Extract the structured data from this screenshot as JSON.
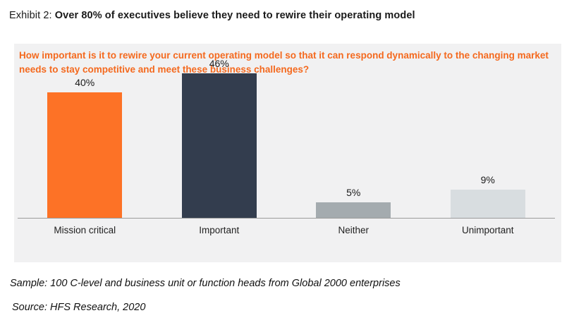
{
  "title": {
    "prefix": "Exhibit 2: ",
    "bold": "Over 80% of executives believe they need to rewire their operating model"
  },
  "question": "How important is it to rewire your current operating model so that it can respond dynamically to the changing market needs to stay competitive and meet these business challenges?",
  "footnotes": {
    "sample": "Sample: 100 C-level and business unit or function heads from Global 2000 enterprises",
    "source": "Source: HFS Research, 2020"
  },
  "colors": {
    "panel_bg": "#f1f1f2",
    "question_text": "#f4691e",
    "axis_line": "#9b9b9b",
    "bar_orange": "#fd7226",
    "bar_navy": "#333d4e",
    "bar_gray": "#a4abaf",
    "bar_light_gray": "#d8dde0"
  },
  "chart_data": {
    "type": "bar",
    "title": "How important is it to rewire your current operating model so that it can respond dynamically to the changing market needs to stay competitive and meet these business challenges?",
    "categories": [
      "Mission critical",
      "Important",
      "Neither",
      "Unimportant"
    ],
    "values": [
      40,
      46,
      5,
      9
    ],
    "value_labels": [
      "40%",
      "46%",
      "5%",
      "9%"
    ],
    "bar_colors": [
      "#fd7226",
      "#333d4e",
      "#a4abaf",
      "#d8dde0"
    ],
    "xlabel": "",
    "ylabel": "",
    "ylim": [
      0,
      50
    ],
    "unit": "percent",
    "grid": false,
    "legend": false,
    "data_labels": true
  }
}
